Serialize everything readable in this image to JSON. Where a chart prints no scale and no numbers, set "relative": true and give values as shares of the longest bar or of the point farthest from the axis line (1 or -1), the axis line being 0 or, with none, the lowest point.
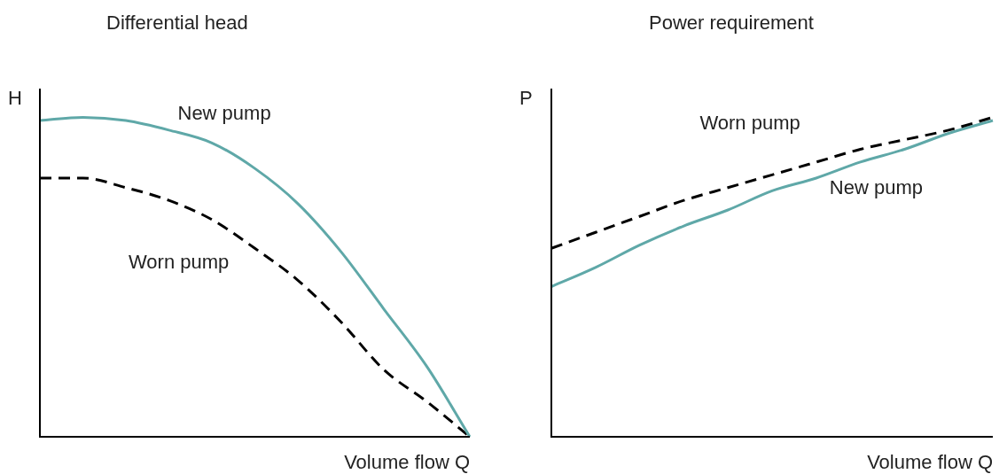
{
  "chart_data": [
    {
      "type": "line",
      "title": "Differential head",
      "xlabel": "Volume flow Q",
      "ylabel": "H",
      "relative": true,
      "legend": false,
      "marker": "none",
      "categories": [
        null,
        null,
        null,
        null,
        null,
        null,
        null,
        null,
        null,
        null,
        null
      ],
      "series": [
        {
          "name": "New pump",
          "color": "#5fa8a8",
          "line_style": "solid",
          "values": [
            0.99,
            1,
            0.99,
            0.96,
            0.92,
            0.84,
            0.73,
            0.58,
            0.4,
            0.22,
            0
          ]
        },
        {
          "name": "Worn pump",
          "color": "#000000",
          "line_style": "dashed",
          "values": [
            0.81,
            0.81,
            0.78,
            0.74,
            0.68,
            0.59,
            0.49,
            0.36,
            0.21,
            0.11,
            0
          ]
        }
      ]
    },
    {
      "type": "line",
      "title": "Power requirement",
      "xlabel": "Volume flow Q",
      "ylabel": "P",
      "relative": true,
      "legend": false,
      "marker": "none",
      "categories": [
        null,
        null,
        null,
        null,
        null,
        null,
        null,
        null,
        null,
        null,
        null
      ],
      "series": [
        {
          "name": "Worn pump",
          "color": "#000000",
          "line_style": "dashed",
          "values": [
            0.59,
            0.64,
            0.69,
            0.74,
            0.78,
            0.82,
            0.86,
            0.9,
            0.93,
            0.96,
            1
          ]
        },
        {
          "name": "New pump",
          "color": "#5fa8a8",
          "line_style": "solid",
          "values": [
            0.47,
            0.53,
            0.6,
            0.66,
            0.71,
            0.77,
            0.81,
            0.86,
            0.9,
            0.95,
            0.99
          ]
        }
      ]
    }
  ]
}
